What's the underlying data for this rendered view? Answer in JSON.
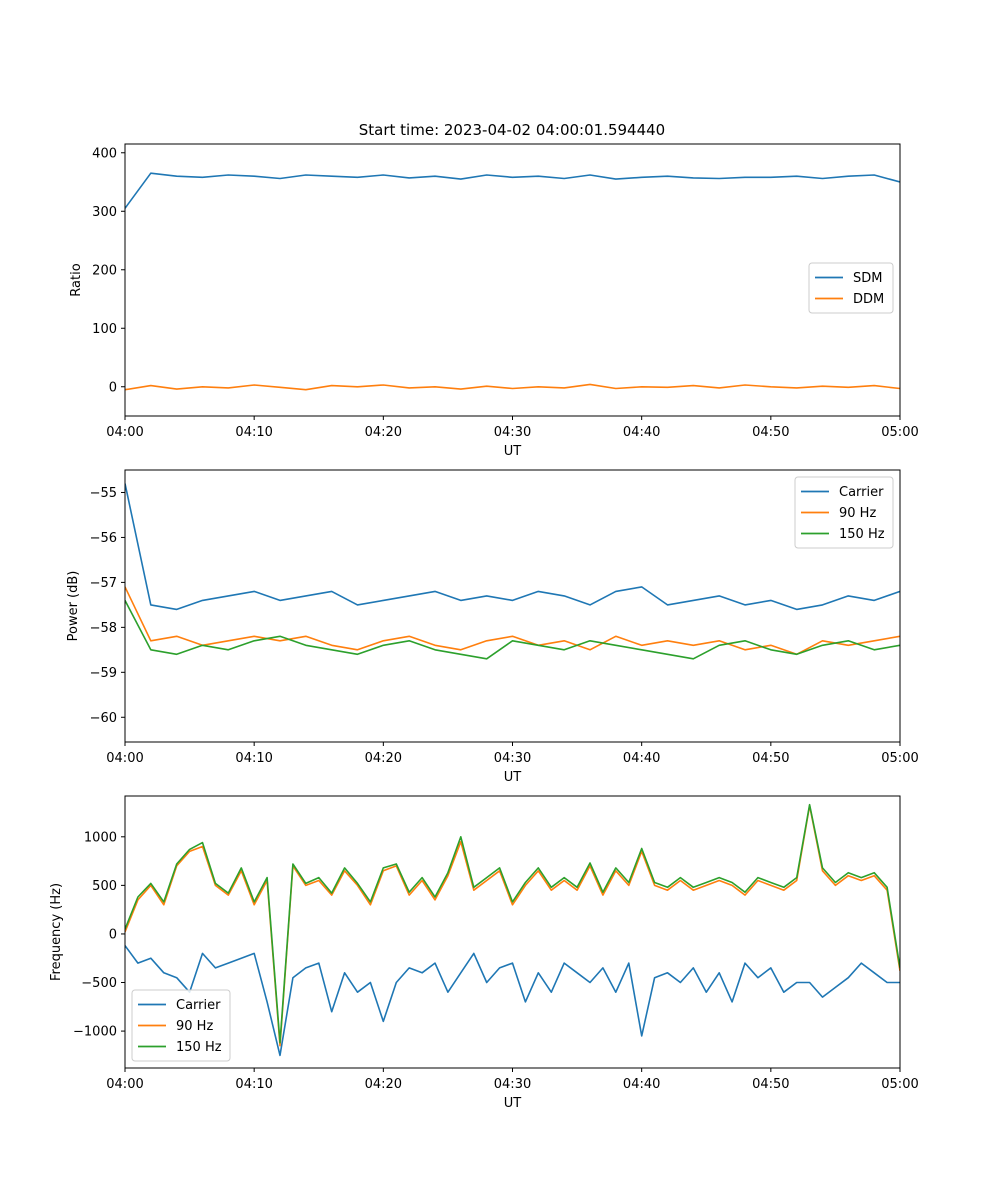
{
  "figure": {
    "title": "Start time: 2023-04-02 04:00:01.594440"
  },
  "colors": {
    "blue": "#1f77b4",
    "orange": "#ff7f0e",
    "green": "#2ca02c"
  },
  "chart_data": [
    {
      "type": "line",
      "title": "Start time: 2023-04-02 04:00:01.594440",
      "xlabel": "UT",
      "ylabel": "Ratio",
      "xlim": [
        "04:00",
        "05:00"
      ],
      "x_ticks": [
        "04:00",
        "04:10",
        "04:20",
        "04:30",
        "04:40",
        "04:50",
        "05:00"
      ],
      "ylim": [
        -50,
        415
      ],
      "y_ticks": [
        0,
        100,
        200,
        300,
        400
      ],
      "legend": "center-right",
      "x": [
        "04:00",
        "04:02",
        "04:04",
        "04:06",
        "04:08",
        "04:10",
        "04:12",
        "04:14",
        "04:16",
        "04:18",
        "04:20",
        "04:22",
        "04:24",
        "04:26",
        "04:28",
        "04:30",
        "04:32",
        "04:34",
        "04:36",
        "04:38",
        "04:40",
        "04:42",
        "04:44",
        "04:46",
        "04:48",
        "04:50",
        "04:52",
        "04:54",
        "04:56",
        "04:58",
        "05:00"
      ],
      "series": [
        {
          "name": "SDM",
          "color": "#1f77b4",
          "values": [
            305,
            365,
            360,
            358,
            362,
            360,
            356,
            362,
            360,
            358,
            362,
            357,
            360,
            355,
            362,
            358,
            360,
            356,
            362,
            355,
            358,
            360,
            357,
            356,
            358,
            358,
            360,
            356,
            360,
            362,
            350
          ]
        },
        {
          "name": "DDM",
          "color": "#ff7f0e",
          "values": [
            -5,
            2,
            -4,
            0,
            -2,
            3,
            -1,
            -5,
            2,
            0,
            3,
            -2,
            0,
            -4,
            1,
            -3,
            0,
            -2,
            4,
            -3,
            0,
            -1,
            2,
            -2,
            3,
            0,
            -2,
            1,
            -1,
            2,
            -3
          ]
        }
      ]
    },
    {
      "type": "line",
      "xlabel": "UT",
      "ylabel": "Power (dB)",
      "xlim": [
        "04:00",
        "05:00"
      ],
      "x_ticks": [
        "04:00",
        "04:10",
        "04:20",
        "04:30",
        "04:40",
        "04:50",
        "05:00"
      ],
      "ylim": [
        -60.55,
        -54.5
      ],
      "y_ticks": [
        -60,
        -59,
        -58,
        -57,
        -56,
        -55
      ],
      "legend": "top-right",
      "x": [
        "04:00",
        "04:02",
        "04:04",
        "04:06",
        "04:08",
        "04:10",
        "04:12",
        "04:14",
        "04:16",
        "04:18",
        "04:20",
        "04:22",
        "04:24",
        "04:26",
        "04:28",
        "04:30",
        "04:32",
        "04:34",
        "04:36",
        "04:38",
        "04:40",
        "04:42",
        "04:44",
        "04:46",
        "04:48",
        "04:50",
        "04:52",
        "04:54",
        "04:56",
        "04:58",
        "05:00"
      ],
      "series": [
        {
          "name": "Carrier",
          "color": "#1f77b4",
          "values": [
            -54.8,
            -57.5,
            -57.6,
            -57.4,
            -57.3,
            -57.2,
            -57.4,
            -57.3,
            -57.2,
            -57.5,
            -57.4,
            -57.3,
            -57.2,
            -57.4,
            -57.3,
            -57.4,
            -57.2,
            -57.3,
            -57.5,
            -57.2,
            -57.1,
            -57.5,
            -57.4,
            -57.3,
            -57.5,
            -57.4,
            -57.6,
            -57.5,
            -57.3,
            -57.4,
            -57.2
          ]
        },
        {
          "name": "90 Hz",
          "color": "#ff7f0e",
          "values": [
            -57.1,
            -58.3,
            -58.2,
            -58.4,
            -58.3,
            -58.2,
            -58.3,
            -58.2,
            -58.4,
            -58.5,
            -58.3,
            -58.2,
            -58.4,
            -58.5,
            -58.3,
            -58.2,
            -58.4,
            -58.3,
            -58.5,
            -58.2,
            -58.4,
            -58.3,
            -58.4,
            -58.3,
            -58.5,
            -58.4,
            -58.6,
            -58.3,
            -58.4,
            -58.3,
            -58.2
          ]
        },
        {
          "name": "150 Hz",
          "color": "#2ca02c",
          "values": [
            -57.4,
            -58.5,
            -58.6,
            -58.4,
            -58.5,
            -58.3,
            -58.2,
            -58.4,
            -58.5,
            -58.6,
            -58.4,
            -58.3,
            -58.5,
            -58.6,
            -58.7,
            -58.3,
            -58.4,
            -58.5,
            -58.3,
            -58.4,
            -58.5,
            -58.6,
            -58.7,
            -58.4,
            -58.3,
            -58.5,
            -58.6,
            -58.4,
            -58.3,
            -58.5,
            -58.4
          ]
        }
      ]
    },
    {
      "type": "line",
      "xlabel": "UT",
      "ylabel": "Frequency (Hz)",
      "xlim": [
        "04:00",
        "05:00"
      ],
      "x_ticks": [
        "04:00",
        "04:10",
        "04:20",
        "04:30",
        "04:40",
        "04:50",
        "05:00"
      ],
      "ylim": [
        -1380,
        1420
      ],
      "y_ticks": [
        -1000,
        -500,
        0,
        500,
        1000
      ],
      "legend": "bottom-left",
      "x": [
        "04:00",
        "04:01",
        "04:02",
        "04:03",
        "04:04",
        "04:05",
        "04:06",
        "04:07",
        "04:08",
        "04:09",
        "04:10",
        "04:11",
        "04:12",
        "04:13",
        "04:14",
        "04:15",
        "04:16",
        "04:17",
        "04:18",
        "04:19",
        "04:20",
        "04:21",
        "04:22",
        "04:23",
        "04:24",
        "04:25",
        "04:26",
        "04:27",
        "04:28",
        "04:29",
        "04:30",
        "04:31",
        "04:32",
        "04:33",
        "04:34",
        "04:35",
        "04:36",
        "04:37",
        "04:38",
        "04:39",
        "04:40",
        "04:41",
        "04:42",
        "04:43",
        "04:44",
        "04:45",
        "04:46",
        "04:47",
        "04:48",
        "04:49",
        "04:50",
        "04:51",
        "04:52",
        "04:53",
        "04:54",
        "04:55",
        "04:56",
        "04:57",
        "04:58",
        "04:59",
        "05:00"
      ],
      "series": [
        {
          "name": "Carrier",
          "color": "#1f77b4",
          "values": [
            -120,
            -300,
            -250,
            -400,
            -450,
            -600,
            -200,
            -350,
            -300,
            -250,
            -200,
            -700,
            -1250,
            -450,
            -350,
            -300,
            -800,
            -400,
            -600,
            -500,
            -900,
            -500,
            -350,
            -400,
            -300,
            -600,
            -400,
            -200,
            -500,
            -350,
            -300,
            -700,
            -400,
            -600,
            -300,
            -400,
            -500,
            -350,
            -600,
            -300,
            -1050,
            -450,
            -400,
            -500,
            -350,
            -600,
            -400,
            -700,
            -300,
            -450,
            -350,
            -600,
            -500,
            -500,
            -650,
            -550,
            -450,
            -300,
            -400,
            -500,
            -500
          ]
        },
        {
          "name": "90 Hz",
          "color": "#ff7f0e",
          "values": [
            20,
            350,
            500,
            300,
            700,
            850,
            900,
            500,
            400,
            650,
            300,
            550,
            -1150,
            700,
            500,
            550,
            400,
            650,
            500,
            300,
            650,
            700,
            400,
            550,
            350,
            600,
            950,
            450,
            550,
            650,
            300,
            500,
            650,
            450,
            550,
            450,
            700,
            400,
            650,
            500,
            850,
            500,
            450,
            550,
            450,
            500,
            550,
            500,
            400,
            550,
            500,
            450,
            550,
            1320,
            650,
            500,
            600,
            550,
            600,
            450,
            -380
          ]
        },
        {
          "name": "150 Hz",
          "color": "#2ca02c",
          "values": [
            50,
            380,
            520,
            330,
            720,
            870,
            940,
            520,
            420,
            680,
            330,
            580,
            -1120,
            720,
            520,
            580,
            420,
            680,
            520,
            330,
            680,
            720,
            430,
            580,
            380,
            630,
            1000,
            480,
            580,
            680,
            330,
            530,
            680,
            480,
            580,
            480,
            730,
            430,
            680,
            530,
            880,
            530,
            480,
            580,
            480,
            530,
            580,
            530,
            430,
            580,
            530,
            480,
            580,
            1330,
            680,
            530,
            630,
            580,
            630,
            480,
            -350
          ]
        }
      ]
    }
  ]
}
